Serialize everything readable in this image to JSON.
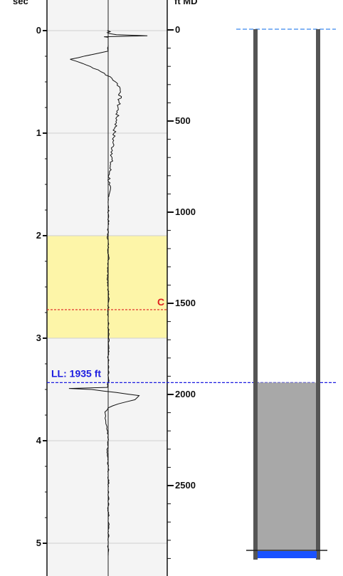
{
  "chart_data": {
    "type": "line",
    "title": "",
    "left_axis": {
      "label": "sec",
      "ticks": [
        "0",
        "1",
        "2",
        "3",
        "4",
        "5"
      ],
      "range": [
        0,
        5.12
      ]
    },
    "right_axis": {
      "label": "ft MD",
      "ticks": [
        "0",
        "500",
        "1000",
        "1500",
        "2000",
        "2500"
      ],
      "range": [
        0,
        2900
      ]
    },
    "highlight_band": {
      "from_sec": 2.0,
      "to_sec": 3.0,
      "color": "#fdf5a8"
    },
    "marker_c": {
      "label": "C",
      "depth_ft": 1535,
      "color": "#e02020"
    },
    "liquid_level": {
      "label": "LL: 1935 ft",
      "depth_ft": 1935,
      "color": "#1c1ce0"
    },
    "series": [
      {
        "x": [
          0.0,
          0.01,
          0.02,
          0.03,
          0.04,
          0.05,
          0.06,
          0.065,
          0.07,
          0.08,
          0.1,
          0.12,
          0.2,
          0.28,
          0.32,
          0.35,
          0.4,
          0.45,
          0.5,
          0.55,
          0.6,
          0.7,
          0.8,
          0.9,
          1.0,
          1.1,
          1.2,
          1.3,
          1.4,
          1.5,
          1.6,
          1.7,
          1.8,
          1.9,
          2.0,
          2.2,
          2.4,
          2.6,
          2.8,
          3.0,
          3.2,
          3.4,
          3.48,
          3.49,
          3.5,
          3.53,
          3.56,
          3.6,
          3.64,
          3.68,
          3.72,
          3.76,
          3.8,
          3.85,
          3.9,
          4.0,
          4.1,
          4.2,
          4.4,
          4.6,
          4.8,
          5.0,
          5.12
        ],
        "y": [
          -0.02,
          0.05,
          -0.02,
          0.04,
          0.2,
          0.95,
          -0.1,
          0.0,
          0.0,
          0.0,
          0.0,
          0.0,
          0.0,
          -0.92,
          -0.62,
          -0.43,
          -0.18,
          0.05,
          0.18,
          0.28,
          0.3,
          0.26,
          0.22,
          0.2,
          0.14,
          0.12,
          0.1,
          0.06,
          0.03,
          0.02,
          0.02,
          0.0,
          0.01,
          0.0,
          -0.01,
          0.01,
          -0.01,
          0.01,
          0.0,
          0.01,
          0.0,
          0.01,
          -0.02,
          -0.95,
          -0.4,
          0.2,
          0.75,
          0.65,
          0.25,
          0.0,
          -0.08,
          -0.06,
          -0.06,
          -0.04,
          -0.02,
          0.0,
          -0.02,
          0.0,
          0.01,
          0.0,
          0.01,
          0.0,
          0.0
        ]
      }
    ]
  },
  "wellbore": {
    "casing_color": "#555555",
    "fluid_color": "#a8a8a8",
    "bottom_color": "#1a52ff"
  }
}
